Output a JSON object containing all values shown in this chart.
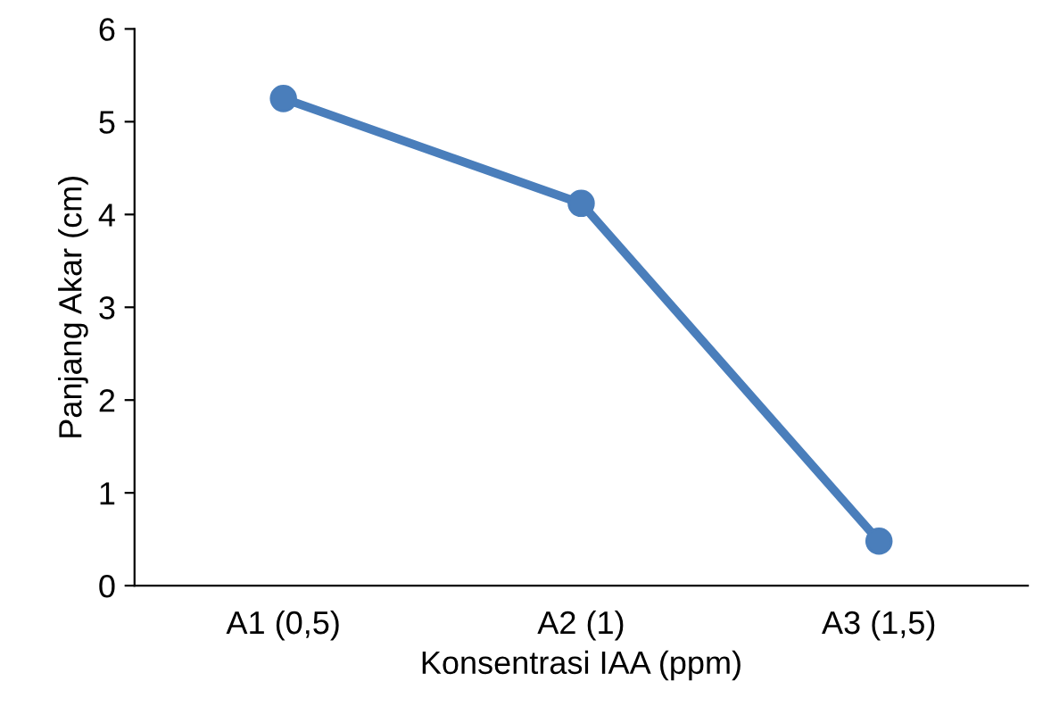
{
  "chart_data": {
    "type": "line",
    "xlabel": "Konsentrasi IAA (ppm)",
    "ylabel": "Panjang Akar (cm)",
    "categories": [
      "A1 (0,5)",
      "A2 (1)",
      "A3 (1,5)"
    ],
    "series": [
      {
        "color": "#4a7ebb",
        "values": [
          5.25,
          4.12,
          0.48
        ]
      }
    ],
    "ylim": [
      0,
      6
    ],
    "yticks": [
      0,
      1,
      2,
      3,
      4,
      5,
      6
    ],
    "marker": "circle",
    "line_style": "solid",
    "grid": false,
    "legend": false
  }
}
